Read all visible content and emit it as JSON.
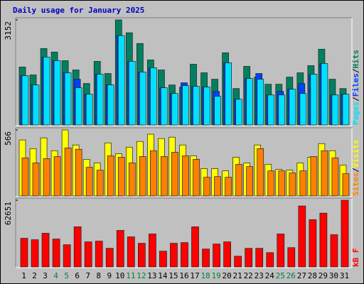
{
  "chart_data": [
    {
      "type": "bar",
      "title": "Daily usage for January 2025",
      "legend_separator": "/",
      "categories": [
        "1",
        "2",
        "3",
        "4",
        "5",
        "6",
        "7",
        "8",
        "9",
        "10",
        "11",
        "12",
        "13",
        "14",
        "15",
        "16",
        "17",
        "18",
        "19",
        "20",
        "21",
        "22",
        "23",
        "24",
        "25",
        "26",
        "27",
        "28",
        "29",
        "30",
        "31"
      ],
      "highlight_categories": [
        "4",
        "5",
        "11",
        "12",
        "18",
        "19",
        "25",
        "26"
      ],
      "label_color": "#000000",
      "highlight_color": "#008040",
      "ylim": [
        0,
        3152
      ],
      "yticks": [
        3152
      ],
      "series": [
        {
          "name": "Pages",
          "color": "#00e0ff",
          "values": [
            1479,
            1201,
            2037,
            1930,
            1565,
            1115,
            922,
            1522,
            1201,
            2680,
            1908,
            1587,
            1715,
            1115,
            943,
            1179,
            1158,
            1136,
            858,
            1865,
            772,
            1394,
            1372,
            900,
            900,
            1072,
            943,
            1522,
            1844,
            900,
            922
          ]
        },
        {
          "name": "Files",
          "color": "#0040ff",
          "values": [
            1479,
            1201,
            2037,
            1930,
            1565,
            1372,
            922,
            1522,
            1201,
            2680,
            1908,
            1587,
            1715,
            1115,
            943,
            1265,
            1158,
            1136,
            1008,
            1865,
            772,
            1394,
            1544,
            900,
            1008,
            1072,
            1244,
            1522,
            1844,
            900,
            922
          ]
        },
        {
          "name": "Hits",
          "color": "#008060",
          "values": [
            1737,
            1501,
            2294,
            2187,
            1930,
            1651,
            1244,
            1908,
            1544,
            3152,
            2766,
            2444,
            1951,
            1651,
            1201,
            1136,
            1822,
            1565,
            1372,
            2165,
            1093,
            1758,
            1436,
            1222,
            1222,
            1436,
            1565,
            1780,
            2273,
            1372,
            1093
          ]
        }
      ]
    },
    {
      "type": "bar",
      "ylim": [
        0,
        566
      ],
      "yticks": [
        566
      ],
      "series": [
        {
          "name": "Sites",
          "color": "#ff8000",
          "values": [
            326,
            283,
            320,
            338,
            412,
            400,
            246,
            221,
            344,
            332,
            283,
            338,
            388,
            338,
            375,
            344,
            314,
            160,
            166,
            160,
            271,
            252,
            406,
            215,
            215,
            197,
            215,
            338,
            388,
            326,
            191
          ]
        },
        {
          "name": "Visits",
          "color": "#ffff00",
          "values": [
            480,
            406,
            498,
            388,
            566,
            437,
            314,
            283,
            455,
            363,
            418,
            467,
            529,
            492,
            504,
            437,
            344,
            234,
            234,
            215,
            332,
            283,
            437,
            271,
            228,
            221,
            283,
            332,
            449,
            388,
            264
          ]
        }
      ]
    },
    {
      "type": "bar",
      "ylim": [
        0,
        62651
      ],
      "yticks": [
        62651
      ],
      "series": [
        {
          "name": "kB F",
          "color": "#ff0000",
          "values": [
            26948,
            25600,
            31664,
            26274,
            20885,
            37727,
            23580,
            24253,
            17516,
            34359,
            28295,
            22232,
            30990,
            14821,
            22232,
            22906,
            37727,
            16843,
            21558,
            23580,
            10106,
            17516,
            17516,
            13474,
            30990,
            18190,
            57265,
            44464,
            50528,
            30317,
            62651
          ]
        }
      ]
    }
  ]
}
